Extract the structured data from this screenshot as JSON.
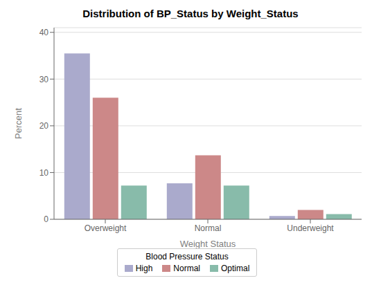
{
  "chart_data": {
    "type": "bar",
    "title": "Distribution of BP_Status by Weight_Status",
    "xlabel": "Weight Status",
    "ylabel": "Percent",
    "categories": [
      "Overweight",
      "Normal",
      "Underweight"
    ],
    "series": [
      {
        "name": "High",
        "color": "#AAAACC",
        "values": [
          35.5,
          7.7,
          0.7
        ]
      },
      {
        "name": "Normal",
        "color": "#CC8888",
        "values": [
          26.0,
          13.7,
          2.0
        ]
      },
      {
        "name": "Optimal",
        "color": "#88BBAA",
        "values": [
          7.2,
          7.2,
          1.1
        ]
      }
    ],
    "ylim": [
      0,
      41
    ],
    "yticks": [
      0,
      10,
      20,
      30,
      40
    ],
    "grid": true,
    "legend": "bottom",
    "legend_title": "Blood Pressure Status"
  }
}
